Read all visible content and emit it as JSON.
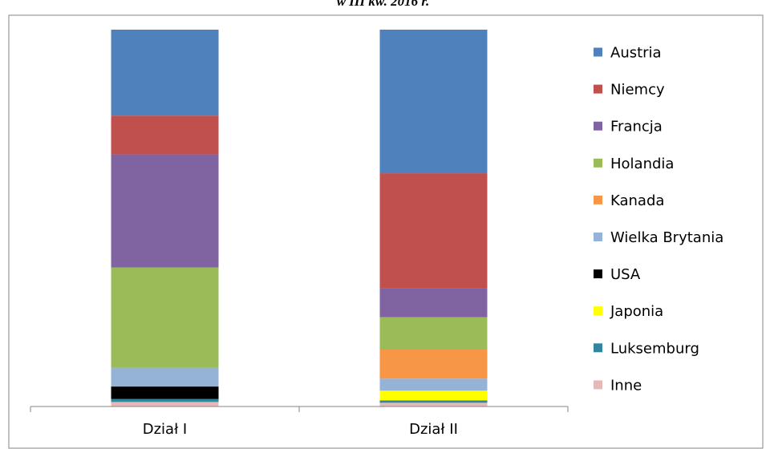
{
  "chart_data": {
    "type": "bar",
    "stacked": true,
    "title": "w III kw. 2016 r.",
    "categories": [
      "Dział I",
      "Dział II"
    ],
    "ylim": [
      0,
      100
    ],
    "grid": false,
    "legend_position": "right",
    "series": [
      {
        "name": "Inne",
        "color": "#E6B9B8",
        "values": [
          1.2,
          1.0
        ]
      },
      {
        "name": "Luksemburg",
        "color": "#31859C",
        "values": [
          0.8,
          0.6
        ]
      },
      {
        "name": "Japonia",
        "color": "#FFFF00",
        "values": [
          0.0,
          2.6
        ]
      },
      {
        "name": "USA",
        "color": "#000000",
        "values": [
          3.3,
          0.0
        ]
      },
      {
        "name": "Wielka Brytania",
        "color": "#95B3D7",
        "values": [
          5.0,
          3.2
        ]
      },
      {
        "name": "Kanada",
        "color": "#F79646",
        "values": [
          0.0,
          7.7
        ]
      },
      {
        "name": "Holandia",
        "color": "#9BBB59",
        "values": [
          26.6,
          8.6
        ]
      },
      {
        "name": "Francja",
        "color": "#8064A2",
        "values": [
          30.0,
          7.7
        ]
      },
      {
        "name": "Niemcy",
        "color": "#C0504D",
        "values": [
          10.3,
          30.5
        ]
      },
      {
        "name": "Austria",
        "color": "#4F81BD",
        "values": [
          22.8,
          38.1
        ]
      }
    ]
  }
}
